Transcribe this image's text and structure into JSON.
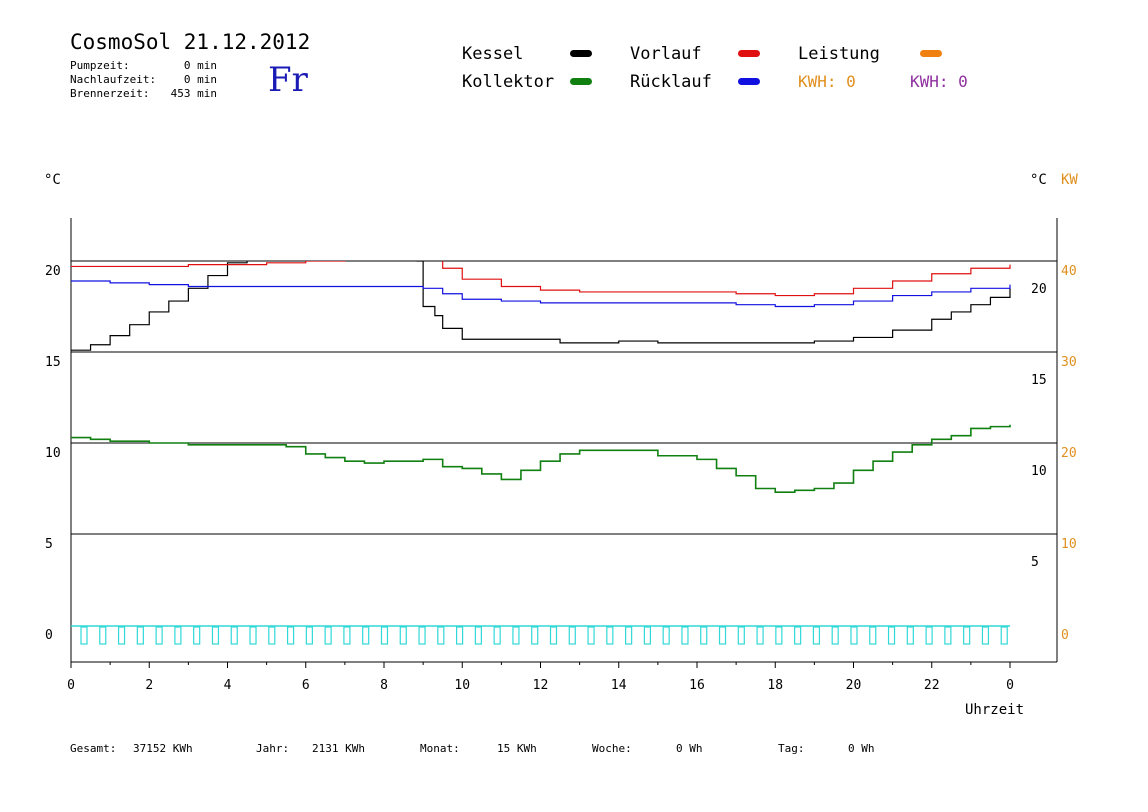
{
  "header": {
    "title": "CosmoSol 21.12.2012",
    "weekday": "Fr",
    "stats": [
      {
        "label": "Pumpzeit:",
        "value": "0 min"
      },
      {
        "label": "Nachlaufzeit:",
        "value": "0 min"
      },
      {
        "label": "Brennerzeit:",
        "value": "453 min"
      }
    ]
  },
  "legend": {
    "items": [
      {
        "label": "Kessel",
        "color": "#000000"
      },
      {
        "label": "Vorlauf",
        "color": "#e01010"
      },
      {
        "label": "Leistung",
        "color": "#f08010"
      },
      {
        "label": "Kollektor",
        "color": "#108010"
      },
      {
        "label": "Rücklauf",
        "color": "#1010e0"
      }
    ],
    "kwh1": {
      "label": "KWH: 0",
      "color": "#e09020"
    },
    "kwh2": {
      "label": "KWH: 0",
      "color": "#9030a0"
    }
  },
  "axes": {
    "left_unit": "°C",
    "right_unit": "°C",
    "right_unit2": "KW",
    "x_label": "Uhrzeit"
  },
  "footer": {
    "gesamt": {
      "label": "Gesamt:",
      "value": "37152 KWh"
    },
    "jahr": {
      "label": "Jahr:",
      "value": "2131 KWh"
    },
    "monat": {
      "label": "Monat:",
      "value": "15 KWh"
    },
    "woche": {
      "label": "Woche:",
      "value": "0 Wh"
    },
    "tag": {
      "label": "Tag:",
      "value": "0 Wh"
    }
  },
  "chart_data": {
    "type": "line",
    "x_ticks": [
      "0",
      "2",
      "4",
      "6",
      "8",
      "10",
      "12",
      "14",
      "16",
      "18",
      "20",
      "22",
      "0"
    ],
    "xlim": [
      0,
      24
    ],
    "ylim": [
      0,
      20
    ],
    "y_ticks_left": [
      "0",
      "5",
      "10",
      "15",
      "20"
    ],
    "y_ticks_right_temp": [
      "5",
      "10",
      "15",
      "20"
    ],
    "y_ticks_right_kw": [
      "0",
      "10",
      "20",
      "30",
      "40"
    ],
    "series": [
      {
        "name": "Kessel",
        "color": "#000000",
        "x": [
          0,
          0.5,
          1,
          1.5,
          2,
          2.5,
          3,
          3.5,
          4,
          4.5,
          5,
          5.5,
          5.8,
          5.9,
          6.3,
          6.6,
          8.8,
          8.85,
          9.0,
          9.3,
          9.5,
          10,
          10.5,
          11,
          12,
          12.5,
          13,
          14,
          15,
          16,
          17,
          18,
          19,
          20,
          21,
          22,
          22.5,
          23,
          23.5,
          24
        ],
        "y": [
          15.1,
          15.4,
          15.9,
          16.5,
          17.2,
          17.8,
          18.5,
          19.2,
          19.9,
          20.6,
          21.3,
          22,
          22.4,
          22.0,
          22.3,
          22.5,
          22.5,
          20,
          17.5,
          17,
          16.3,
          15.7,
          15.7,
          15.7,
          15.7,
          15.5,
          15.5,
          15.6,
          15.5,
          15.5,
          15.5,
          15.5,
          15.6,
          15.8,
          16.2,
          16.8,
          17.2,
          17.6,
          18,
          18.5
        ]
      },
      {
        "name": "Vorlauf",
        "color": "#e01010",
        "x": [
          0,
          1,
          2,
          3,
          4,
          5,
          6,
          7,
          8,
          9,
          9.5,
          10,
          11,
          12,
          13,
          14,
          15,
          16,
          17,
          18,
          18.5,
          19,
          20,
          21,
          22,
          23,
          24
        ],
        "y": [
          19.7,
          19.7,
          19.7,
          19.8,
          19.8,
          19.9,
          20.0,
          20.1,
          20.1,
          20.1,
          19.6,
          19.0,
          18.6,
          18.4,
          18.3,
          18.3,
          18.3,
          18.3,
          18.2,
          18.1,
          18.1,
          18.2,
          18.5,
          18.9,
          19.3,
          19.6,
          19.8
        ]
      },
      {
        "name": "Rücklauf",
        "color": "#1010e0",
        "x": [
          0,
          1,
          2,
          3,
          4,
          5,
          6,
          7,
          8,
          9,
          9.5,
          10,
          11,
          12,
          13,
          14,
          15,
          16,
          17,
          18,
          19,
          20,
          21,
          22,
          23,
          24
        ],
        "y": [
          18.9,
          18.8,
          18.7,
          18.6,
          18.6,
          18.6,
          18.6,
          18.6,
          18.6,
          18.5,
          18.2,
          17.9,
          17.8,
          17.7,
          17.7,
          17.7,
          17.7,
          17.7,
          17.6,
          17.5,
          17.6,
          17.8,
          18.1,
          18.3,
          18.5,
          18.7
        ]
      },
      {
        "name": "Kollektor",
        "color": "#108010",
        "x": [
          0,
          0.5,
          1,
          2,
          3,
          4,
          5,
          5.5,
          6,
          6.5,
          7,
          7.5,
          8,
          9,
          9.5,
          10,
          10.5,
          11,
          11.5,
          12,
          12.5,
          13,
          14,
          15,
          16,
          16.5,
          17,
          17.5,
          18,
          18.5,
          19,
          19.5,
          20,
          20.5,
          21,
          21.5,
          22,
          22.5,
          23,
          23.5,
          24
        ],
        "y": [
          10.3,
          10.2,
          10.1,
          10.0,
          9.9,
          9.9,
          9.9,
          9.8,
          9.4,
          9.2,
          9.0,
          8.9,
          9.0,
          9.1,
          8.7,
          8.6,
          8.3,
          8.0,
          8.5,
          9.0,
          9.4,
          9.6,
          9.6,
          9.3,
          9.1,
          8.6,
          8.2,
          7.5,
          7.3,
          7.4,
          7.5,
          7.8,
          8.5,
          9.0,
          9.5,
          9.9,
          10.2,
          10.4,
          10.8,
          10.9,
          11.0
        ]
      }
    ],
    "pump_signal": {
      "name": "Pumpe",
      "color": "#30d8d8",
      "pulses": 50
    }
  }
}
